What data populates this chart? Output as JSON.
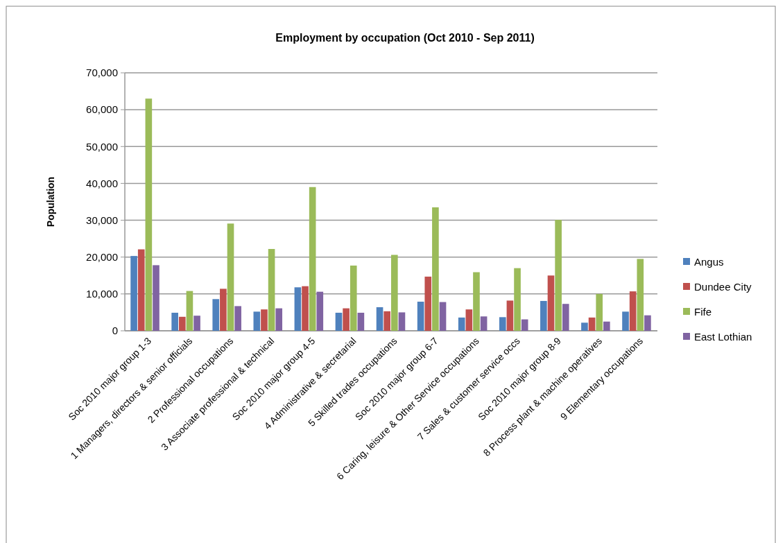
{
  "chart_data": {
    "type": "bar",
    "title": "Employment by occupation (Oct 2010 - Sep 2011)",
    "ylabel": "Population",
    "categories": [
      "Soc 2010 major group 1-3",
      "1 Managers, directors & senior officials",
      "2 Professional occupations",
      "3 Associate professional & technical",
      "Soc 2010 major group 4-5",
      "4 Administrative & secretarial",
      "5 Skilled trades occupations",
      "Soc 2010 major group 6-7",
      "6 Caring, leisure & Other Service occupations",
      "7 Sales & customer service occs",
      "Soc 2010 major group 8-9",
      "8 Process plant & machine operatives",
      "9 Elementary occupations"
    ],
    "series": [
      {
        "name": "Angus",
        "color": "#4f81bd",
        "values": [
          20300,
          4900,
          8600,
          5200,
          11800,
          4900,
          6400,
          7900,
          3600,
          3700,
          8100,
          2200,
          5200
        ]
      },
      {
        "name": "Dundee City",
        "color": "#c0504d",
        "values": [
          22100,
          3800,
          11400,
          5800,
          12100,
          6100,
          5300,
          14700,
          5800,
          8200,
          15000,
          3600,
          10700
        ]
      },
      {
        "name": "Fife",
        "color": "#9bbb59",
        "values": [
          63000,
          10800,
          29100,
          22200,
          39000,
          17700,
          20600,
          33500,
          15900,
          17000,
          30100,
          10000,
          19500
        ]
      },
      {
        "name": "East Lothian",
        "color": "#8064a2",
        "values": [
          17800,
          4100,
          6700,
          6100,
          10600,
          4900,
          5000,
          7800,
          3900,
          3100,
          7300,
          2500,
          4200
        ]
      }
    ],
    "ylim": [
      0,
      70000
    ],
    "yticks": [
      {
        "value": 0,
        "label": "0"
      },
      {
        "value": 10000,
        "label": "10,000"
      },
      {
        "value": 20000,
        "label": "20,000"
      },
      {
        "value": 30000,
        "label": "30,000"
      },
      {
        "value": 40000,
        "label": "40,000"
      },
      {
        "value": 50000,
        "label": "50,000"
      },
      {
        "value": 60000,
        "label": "60,000"
      },
      {
        "value": 70000,
        "label": "70,000"
      }
    ],
    "grid": "y",
    "legend": "right"
  }
}
